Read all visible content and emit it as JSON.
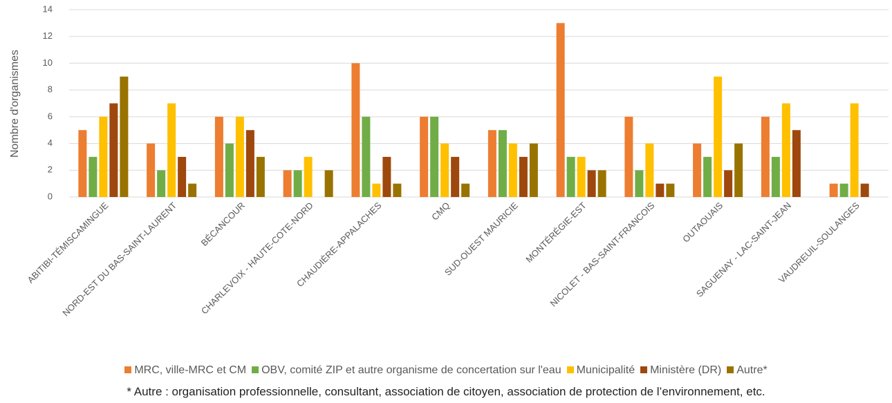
{
  "chart_data": {
    "type": "bar",
    "y_label": "Nombre d'organismes",
    "categories": [
      "ABITIBI-TÉMISCAMINGUE",
      "NORD-EST DU BAS-SAINT-LAURENT",
      "BÉCANCOUR",
      "CHARLEVOIX - HAUTE-COTE-NORD",
      "CHAUDIÈRE-APPALACHES",
      "CMQ",
      "SUD-OUEST MAURICIE",
      "MONTÉRÉGIE-EST",
      "NICOLET - BAS-SAINT-FRANCOIS",
      "OUTAOUAIS",
      "SAGUENAY - LAC-SAINT-JEAN",
      "VAUDREUIL-SOULANGES"
    ],
    "series": [
      {
        "name": "MRC, ville-MRC et CM",
        "color": "#ed7d31",
        "values": [
          5,
          4,
          6,
          2,
          10,
          6,
          5,
          13,
          6,
          4,
          6,
          1
        ]
      },
      {
        "name": "OBV, comité ZIP et autre organisme de concertation sur l'eau",
        "color": "#70ad47",
        "values": [
          3,
          2,
          4,
          2,
          6,
          6,
          5,
          3,
          2,
          3,
          3,
          1
        ]
      },
      {
        "name": "Municipalité",
        "color": "#ffc000",
        "values": [
          6,
          7,
          6,
          3,
          1,
          4,
          4,
          3,
          4,
          9,
          7,
          7
        ]
      },
      {
        "name": "Ministère (DR)",
        "color": "#9e480e",
        "values": [
          7,
          3,
          5,
          0,
          3,
          3,
          3,
          2,
          1,
          2,
          5,
          1
        ]
      },
      {
        "name": "Autre*",
        "color": "#997300",
        "values": [
          9,
          1,
          3,
          2,
          1,
          1,
          4,
          2,
          1,
          4,
          0,
          0
        ]
      }
    ],
    "ylim": [
      0,
      14
    ],
    "yticks": [
      0,
      2,
      4,
      6,
      8,
      10,
      12,
      14
    ],
    "grid": true,
    "footnote": "* Autre : organisation professionnelle, consultant, association de citoyen, association de protection de l’environnement, etc."
  }
}
